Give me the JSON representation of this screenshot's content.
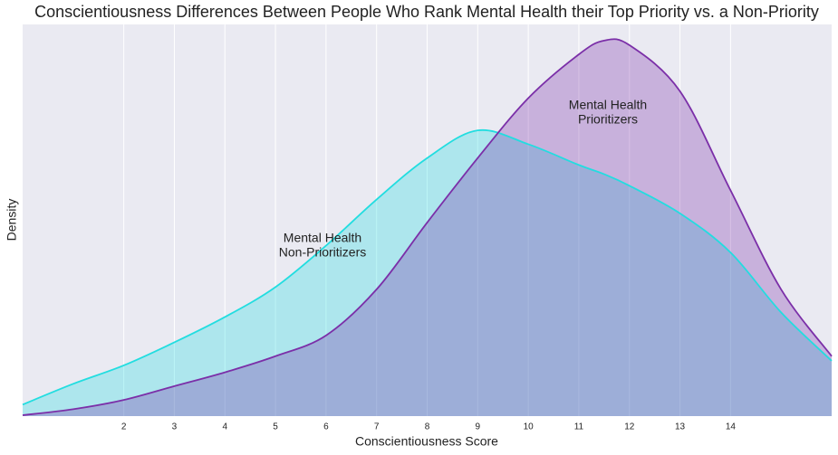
{
  "chart_data": {
    "type": "kde",
    "title": "Conscientiousness Differences Between People Who Rank Mental Health their Top Priority vs. a Non-Priority",
    "x_label": "Conscientiousness Score",
    "y_label": "Density",
    "x": [
      0,
      1,
      2,
      3,
      4,
      5,
      6,
      7,
      8,
      9,
      10,
      11,
      11.5,
      12,
      13,
      14,
      15,
      16
    ],
    "series": [
      {
        "color": "#22dde0",
        "values": [
          0.005,
          0.014,
          0.022,
          0.032,
          0.043,
          0.056,
          0.074,
          0.094,
          0.112,
          0.124,
          0.118,
          0.109,
          0.105,
          0.1,
          0.088,
          0.071,
          0.045,
          0.024
        ]
      },
      {
        "color": "#7b2fa8",
        "values": [
          0.0004,
          0.003,
          0.007,
          0.013,
          0.019,
          0.026,
          0.035,
          0.055,
          0.084,
          0.112,
          0.138,
          0.157,
          0.163,
          0.161,
          0.141,
          0.098,
          0.055,
          0.026
        ]
      }
    ],
    "annotations": [
      {
        "lines": [
          "Mental Health",
          "Non-Prioritizers"
        ]
      },
      {
        "lines": [
          "Mental Health",
          "Prioritizers"
        ]
      }
    ],
    "xlim": [
      0,
      16
    ],
    "ylim": [
      0,
      0.17
    ],
    "xticks": [
      2,
      3,
      4,
      5,
      6,
      7,
      8,
      9,
      10,
      11,
      12,
      13,
      14
    ],
    "grid": true
  }
}
